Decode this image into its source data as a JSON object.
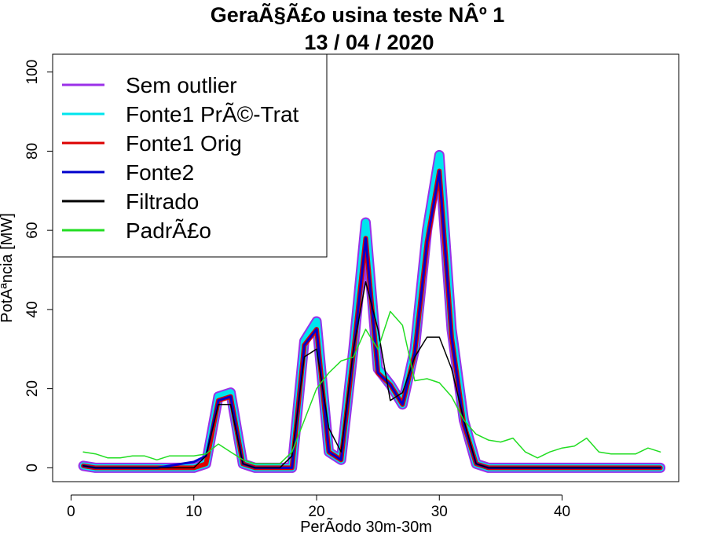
{
  "chart_data": {
    "type": "line",
    "title": "GeraÃ§Ã£o usina teste NÂº 1",
    "subtitle": "13 / 04 / 2020",
    "xlabel": "PerÃ­odo 30m-30m",
    "ylabel": "PotÃªncia [MW]",
    "xlim": [
      -1.5,
      49.5
    ],
    "ylim": [
      -3.5,
      104.5
    ],
    "x_ticks": [
      0,
      10,
      20,
      30,
      40
    ],
    "y_ticks": [
      0,
      20,
      40,
      60,
      80,
      100
    ],
    "legend_position": "top-left",
    "x": [
      1,
      2,
      3,
      4,
      5,
      6,
      7,
      8,
      9,
      10,
      11,
      12,
      13,
      14,
      15,
      16,
      17,
      18,
      19,
      20,
      21,
      22,
      23,
      24,
      25,
      26,
      27,
      28,
      29,
      30,
      31,
      32,
      33,
      34,
      35,
      36,
      37,
      38,
      39,
      40,
      41,
      42,
      43,
      44,
      45,
      46,
      47,
      48
    ],
    "series": [
      {
        "name": "Sem outlier",
        "color": "#9b30e8",
        "values": [
          0.5,
          0,
          0,
          0,
          0,
          0,
          0,
          0,
          0,
          0,
          1,
          18,
          19,
          1,
          0,
          0,
          0,
          0,
          32,
          37,
          4,
          2,
          30,
          62,
          25,
          21,
          16,
          30,
          60,
          79,
          35,
          12,
          1,
          0,
          0,
          0,
          0,
          0,
          0,
          0,
          0,
          0,
          0,
          0,
          0,
          0,
          0,
          0
        ]
      },
      {
        "name": "Fonte1 PrÃ©-Trat",
        "color": "#00e5ee",
        "values": [
          0.5,
          0,
          0,
          0,
          0,
          0,
          0,
          0,
          0,
          0,
          1,
          18,
          19,
          1,
          0,
          0,
          0,
          0,
          32,
          37,
          4,
          2,
          30,
          62,
          25,
          21,
          16,
          30,
          60,
          79,
          35,
          12,
          1,
          0,
          0,
          0,
          0,
          0,
          0,
          0,
          0,
          0,
          0,
          0,
          0,
          0,
          0,
          0
        ]
      },
      {
        "name": "Fonte1 Orig",
        "color": "#dd0000",
        "values": [
          0.5,
          0,
          0,
          0,
          0,
          0,
          0,
          0,
          0,
          0,
          1,
          17,
          18,
          1,
          0,
          0,
          0,
          0,
          31,
          35,
          4,
          2,
          29,
          58,
          24,
          21,
          16,
          29,
          57,
          75,
          33,
          11,
          1,
          0,
          0,
          0,
          0,
          0,
          0,
          0,
          0,
          0,
          0,
          0,
          0,
          0,
          0,
          0
        ]
      },
      {
        "name": "Fonte2",
        "color": "#0000cc",
        "values": [
          0.5,
          0,
          0,
          0,
          0,
          0,
          0,
          0.5,
          1,
          1.5,
          3,
          17,
          18,
          1,
          0,
          0,
          0,
          0,
          31,
          35,
          4,
          2,
          29,
          58,
          24,
          21,
          16,
          29,
          57,
          75,
          33,
          11,
          1,
          0,
          0,
          0,
          0,
          0,
          0,
          0,
          0,
          0,
          0,
          0,
          0,
          0,
          0,
          0
        ]
      },
      {
        "name": "Filtrado",
        "color": "#000000",
        "values": [
          0.5,
          0,
          0,
          0,
          0,
          0,
          0,
          0,
          0,
          0,
          3,
          16,
          16,
          1,
          0,
          0,
          0,
          3,
          28,
          30,
          10,
          4,
          30,
          47,
          35,
          17,
          19,
          28,
          33,
          33,
          25,
          12,
          1,
          0,
          0,
          0,
          0,
          0,
          0,
          0,
          0,
          0,
          0,
          0,
          0,
          0,
          0,
          0
        ]
      },
      {
        "name": "PadrÃ£o",
        "color": "#22dd22",
        "values": [
          4,
          3.5,
          2.5,
          2.5,
          3,
          3,
          2,
          3,
          3,
          3,
          3.5,
          6,
          4,
          2,
          1,
          1,
          1,
          4,
          12,
          20,
          24,
          27,
          28,
          35,
          30,
          39.5,
          36,
          22,
          22.5,
          21.5,
          18,
          12,
          8.5,
          7,
          6.5,
          7.5,
          4,
          2.5,
          4,
          5,
          5.5,
          7.5,
          4,
          3.5,
          3.5,
          3.5,
          5,
          4
        ]
      }
    ]
  }
}
